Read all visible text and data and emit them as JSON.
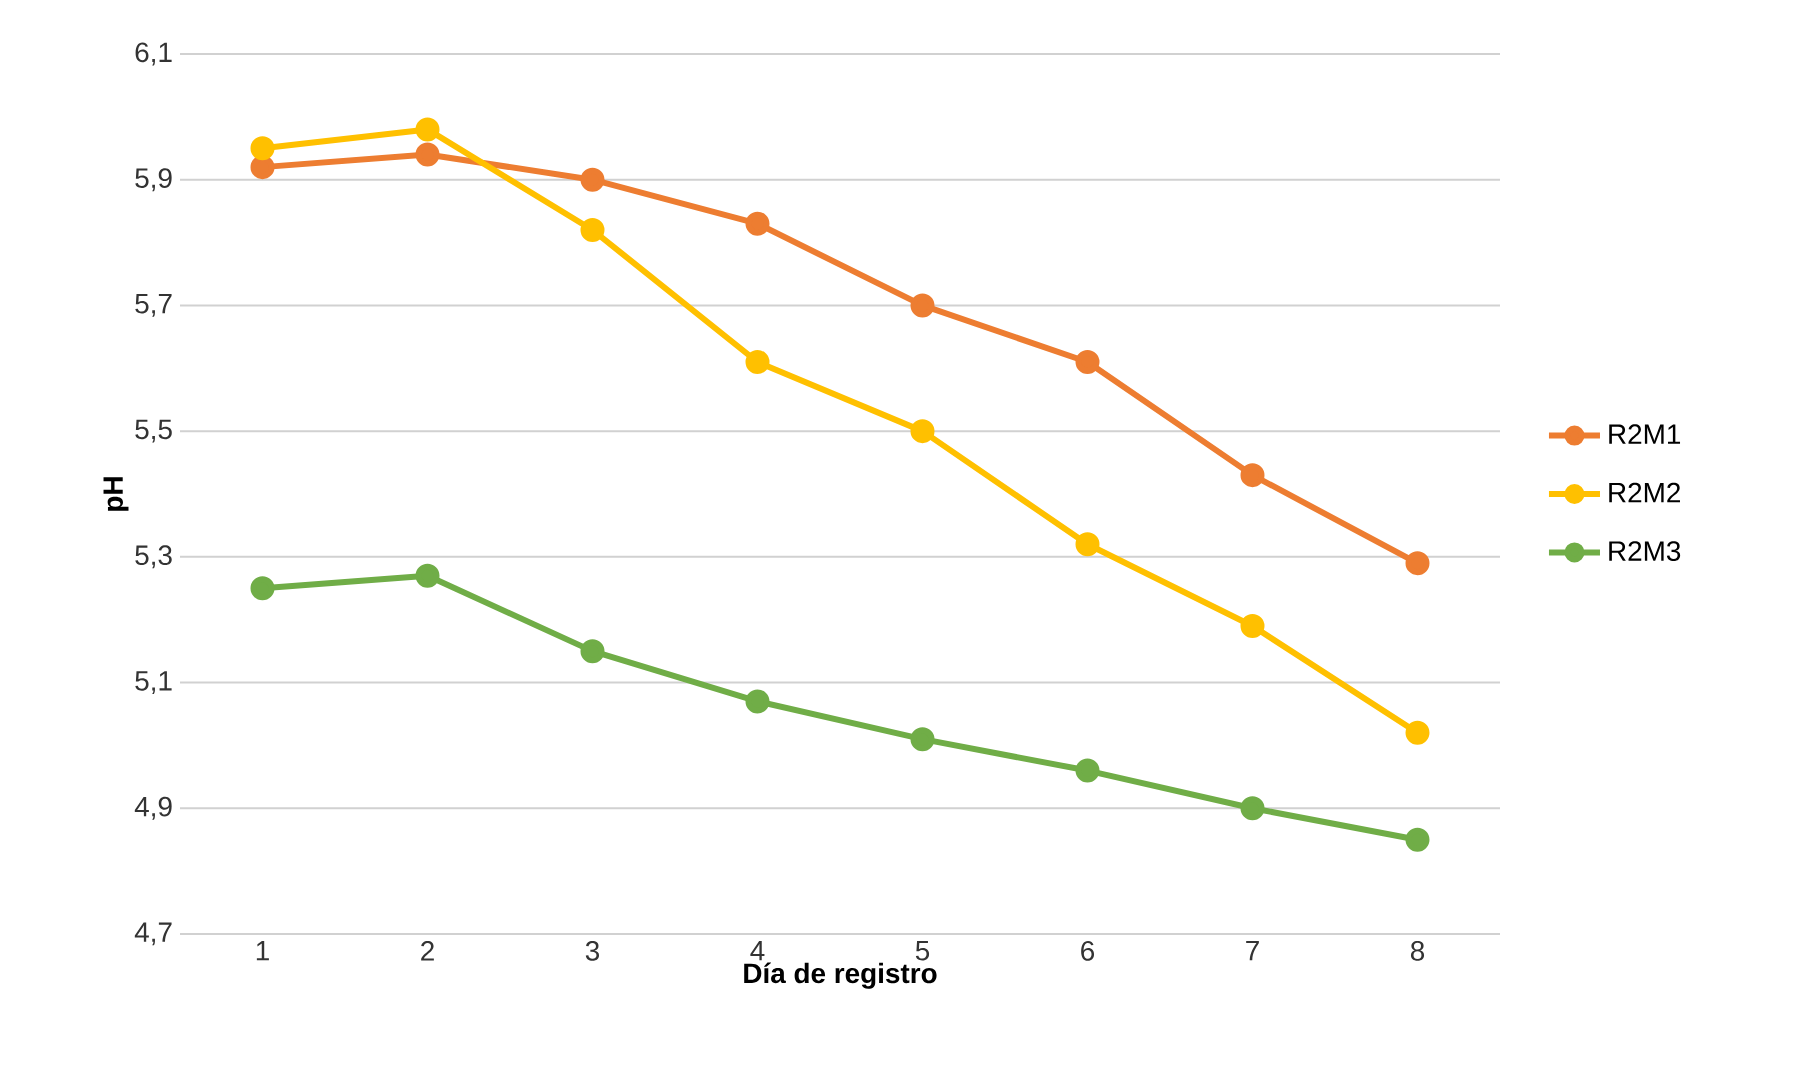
{
  "chart_data": {
    "type": "line",
    "xlabel": "Día de registro",
    "ylabel": "pH",
    "categories": [
      "1",
      "2",
      "3",
      "4",
      "5",
      "6",
      "7",
      "8"
    ],
    "series": [
      {
        "name": "R2M1",
        "color": "#ed7d31",
        "values": [
          5.92,
          5.94,
          5.9,
          5.83,
          5.7,
          5.61,
          5.43,
          5.29
        ]
      },
      {
        "name": "R2M2",
        "color": "#ffc000",
        "values": [
          5.95,
          5.98,
          5.82,
          5.61,
          5.5,
          5.32,
          5.19,
          5.02
        ]
      },
      {
        "name": "R2M3",
        "color": "#70ad47",
        "values": [
          5.25,
          5.27,
          5.15,
          5.07,
          5.01,
          4.96,
          4.9,
          4.85
        ]
      }
    ],
    "ylim": [
      4.7,
      6.1
    ],
    "yticks": [
      {
        "value": 4.7,
        "label": "4,7"
      },
      {
        "value": 4.9,
        "label": "4,9"
      },
      {
        "value": 5.1,
        "label": "5,1"
      },
      {
        "value": 5.3,
        "label": "5,3"
      },
      {
        "value": 5.5,
        "label": "5,5"
      },
      {
        "value": 5.7,
        "label": "5,7"
      },
      {
        "value": 5.9,
        "label": "5,9"
      },
      {
        "value": 6.1,
        "label": "6,1"
      }
    ],
    "grid": "y",
    "legend": "right",
    "marker": "circle",
    "line_style": "solid"
  }
}
